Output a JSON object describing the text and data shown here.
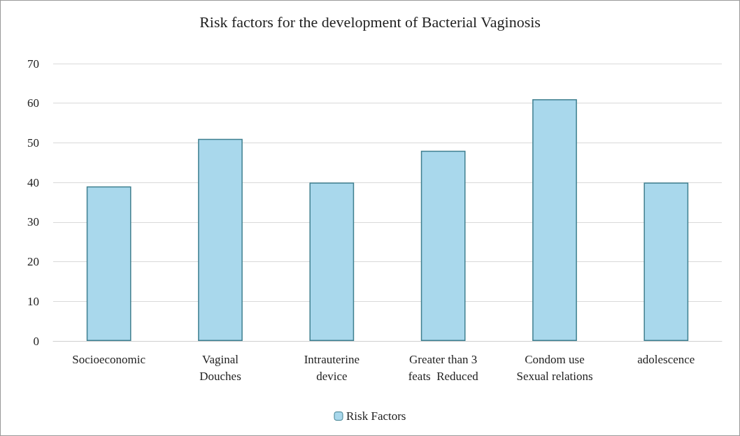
{
  "chart_data": {
    "type": "bar",
    "title": "Risk factors for the development of Bacterial Vaginosis",
    "categories": [
      "Socioeconomic",
      "Vaginal\nDouches",
      "Intrauterine\ndevice",
      "Greater than 3\nfeats  Reduced",
      "Condom use\nSexual relations",
      "adolescence"
    ],
    "series": [
      {
        "name": "Risk Factors",
        "color": "#a9d8ec",
        "values": [
          39,
          51,
          40,
          48,
          61,
          40
        ]
      }
    ],
    "ylim": [
      0,
      70
    ],
    "yticks": [
      0,
      10,
      20,
      30,
      40,
      50,
      60,
      70
    ],
    "grid": "y",
    "legend": "bottom"
  }
}
